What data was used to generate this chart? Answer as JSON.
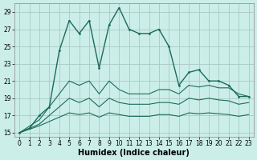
{
  "xlabel": "Humidex (Indice chaleur)",
  "bg_color": "#cceee8",
  "grid_color": "#aac8c4",
  "line_color": "#1a6b5a",
  "xlim": [
    -0.5,
    23.5
  ],
  "ylim": [
    14.5,
    30
  ],
  "yticks": [
    15,
    17,
    19,
    21,
    23,
    25,
    27,
    29
  ],
  "xticks": [
    0,
    1,
    2,
    3,
    4,
    5,
    6,
    7,
    8,
    9,
    10,
    11,
    12,
    13,
    14,
    15,
    16,
    17,
    18,
    19,
    20,
    21,
    22,
    23
  ],
  "series": [
    {
      "x": [
        0,
        1,
        2,
        3,
        4,
        5,
        6,
        7,
        8,
        9,
        10,
        11,
        12,
        13,
        14,
        15,
        16,
        17,
        18,
        19,
        20,
        21,
        22,
        23
      ],
      "y": [
        15,
        15.5,
        17,
        18,
        24.5,
        28,
        26.5,
        28,
        22.5,
        27.5,
        29.5,
        27,
        26.5,
        26.5,
        27,
        25,
        20.5,
        22,
        22.3,
        21,
        21,
        20.5,
        19.2,
        19.2
      ],
      "marker": true,
      "lw": 1.0
    },
    {
      "x": [
        0,
        2,
        4,
        5,
        6,
        7,
        8,
        9,
        10,
        11,
        12,
        13,
        14,
        15,
        16,
        17,
        18,
        19,
        20,
        21,
        22,
        23
      ],
      "y": [
        15,
        16.5,
        19.5,
        21,
        20.5,
        21,
        19.5,
        21,
        20,
        19.5,
        19.5,
        19.5,
        20,
        20,
        19.5,
        20.5,
        20.3,
        20.5,
        20.2,
        20.2,
        19.5,
        19.2
      ],
      "marker": false,
      "lw": 0.8
    },
    {
      "x": [
        0,
        2,
        4,
        5,
        6,
        7,
        8,
        9,
        10,
        11,
        12,
        13,
        14,
        15,
        16,
        17,
        18,
        19,
        20,
        21,
        22,
        23
      ],
      "y": [
        15,
        16.0,
        18.0,
        19.0,
        18.5,
        19.0,
        18.0,
        19.0,
        18.5,
        18.3,
        18.3,
        18.3,
        18.5,
        18.5,
        18.3,
        19.0,
        18.8,
        19.0,
        18.8,
        18.7,
        18.3,
        18.5
      ],
      "marker": false,
      "lw": 0.8
    },
    {
      "x": [
        0,
        2,
        4,
        5,
        6,
        7,
        8,
        9,
        10,
        11,
        12,
        13,
        14,
        15,
        16,
        17,
        18,
        19,
        20,
        21,
        22,
        23
      ],
      "y": [
        15,
        15.8,
        16.8,
        17.3,
        17.1,
        17.3,
        16.8,
        17.3,
        17.1,
        16.9,
        16.9,
        16.9,
        17.1,
        17.1,
        16.9,
        17.3,
        17.2,
        17.3,
        17.2,
        17.1,
        16.9,
        17.1
      ],
      "marker": false,
      "lw": 0.8
    }
  ],
  "tick_fontsize": 5.5,
  "axis_fontsize": 7
}
